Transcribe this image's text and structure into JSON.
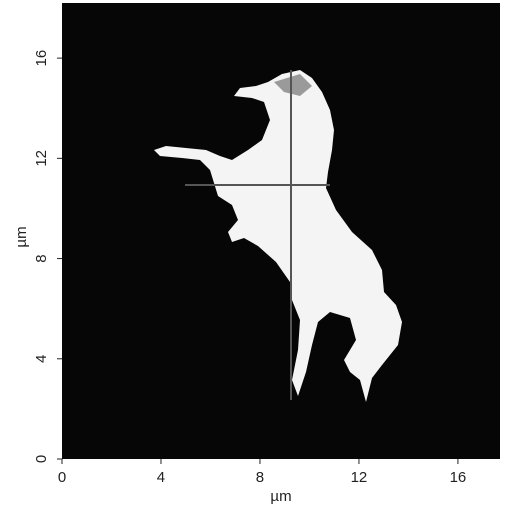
{
  "chart_data": {
    "type": "image",
    "xlabel": "µm",
    "ylabel": "µm",
    "xlim": [
      0,
      17.7
    ],
    "ylim": [
      0,
      18.2
    ],
    "xticks": [
      0,
      4,
      8,
      12,
      16
    ],
    "yticks": [
      0,
      4,
      8,
      12,
      16
    ]
  }
}
